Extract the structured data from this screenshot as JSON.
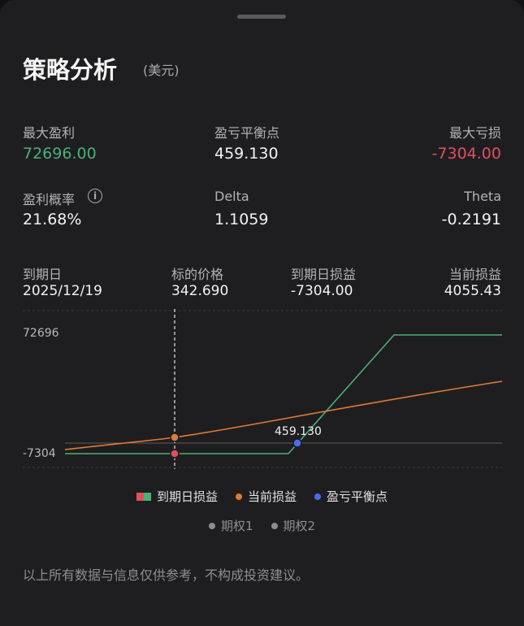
{
  "header": {
    "title": "策略分析",
    "currency": "(美元)"
  },
  "stats": {
    "max_profit_label": "最大盈利",
    "max_profit": "72696.00",
    "breakeven_label": "盈亏平衡点",
    "breakeven": "459.130",
    "max_loss_label": "最大亏损",
    "max_loss": "-7304.00",
    "prob_profit_label": "盈利概率",
    "prob_profit": "21.68%",
    "info_icon": "i",
    "delta_label": "Delta",
    "delta": "1.1059",
    "theta_label": "Theta",
    "theta": "-0.2191"
  },
  "snapshot": {
    "expiry_label": "到期日",
    "expiry": "2025/12/19",
    "price_label": "标的价格",
    "price": "342.690",
    "expiry_pnl_label": "到期日损益",
    "expiry_pnl": "-7304.00",
    "current_pnl_label": "当前损益",
    "current_pnl": "4055.43"
  },
  "chart_data": {
    "type": "line",
    "y_top_label": "72696",
    "y_bottom_label": "-7304",
    "breakeven_label": "459.130",
    "series": [
      {
        "name": "到期日损益",
        "color": "#4caf78"
      },
      {
        "name": "当前损益",
        "color": "#e07a36"
      }
    ]
  },
  "legend": {
    "expiry_pnl": "到期日损益",
    "current_pnl": "当前损益",
    "breakeven": "盈亏平衡点",
    "option1": "期权1",
    "option2": "期权2"
  },
  "colors": {
    "green": "#4caf78",
    "red": "#e0505c",
    "orange": "#e07a36",
    "blue": "#4a6cf0"
  },
  "footer": {
    "disclaimer": "以上所有数据与信息仅供参考，不构成投资建议。"
  }
}
